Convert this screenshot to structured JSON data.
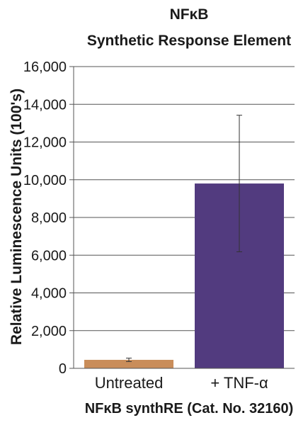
{
  "chart_data": {
    "type": "bar",
    "title": "NFκB",
    "subtitle": "Synthetic Response Element",
    "ylabel": "Relative Luminescence Units (100's)",
    "xlabel": "NFκB synthRE (Cat. No. 32160)",
    "categories": [
      "Untreated",
      "+ TNF-α"
    ],
    "values": [
      450,
      9800
    ],
    "error": [
      90,
      3620
    ],
    "bar_colors": [
      "#c98d5a",
      "#523b7f"
    ],
    "ylim": [
      0,
      16000
    ],
    "yticks": [
      0,
      2000,
      4000,
      6000,
      8000,
      10000,
      12000,
      14000,
      16000
    ],
    "ytick_labels": [
      "0",
      "2,000",
      "4,000",
      "6,000",
      "8,000",
      "10,000",
      "12,000",
      "14,000",
      "16,000"
    ],
    "grid": true,
    "legend": "none"
  }
}
